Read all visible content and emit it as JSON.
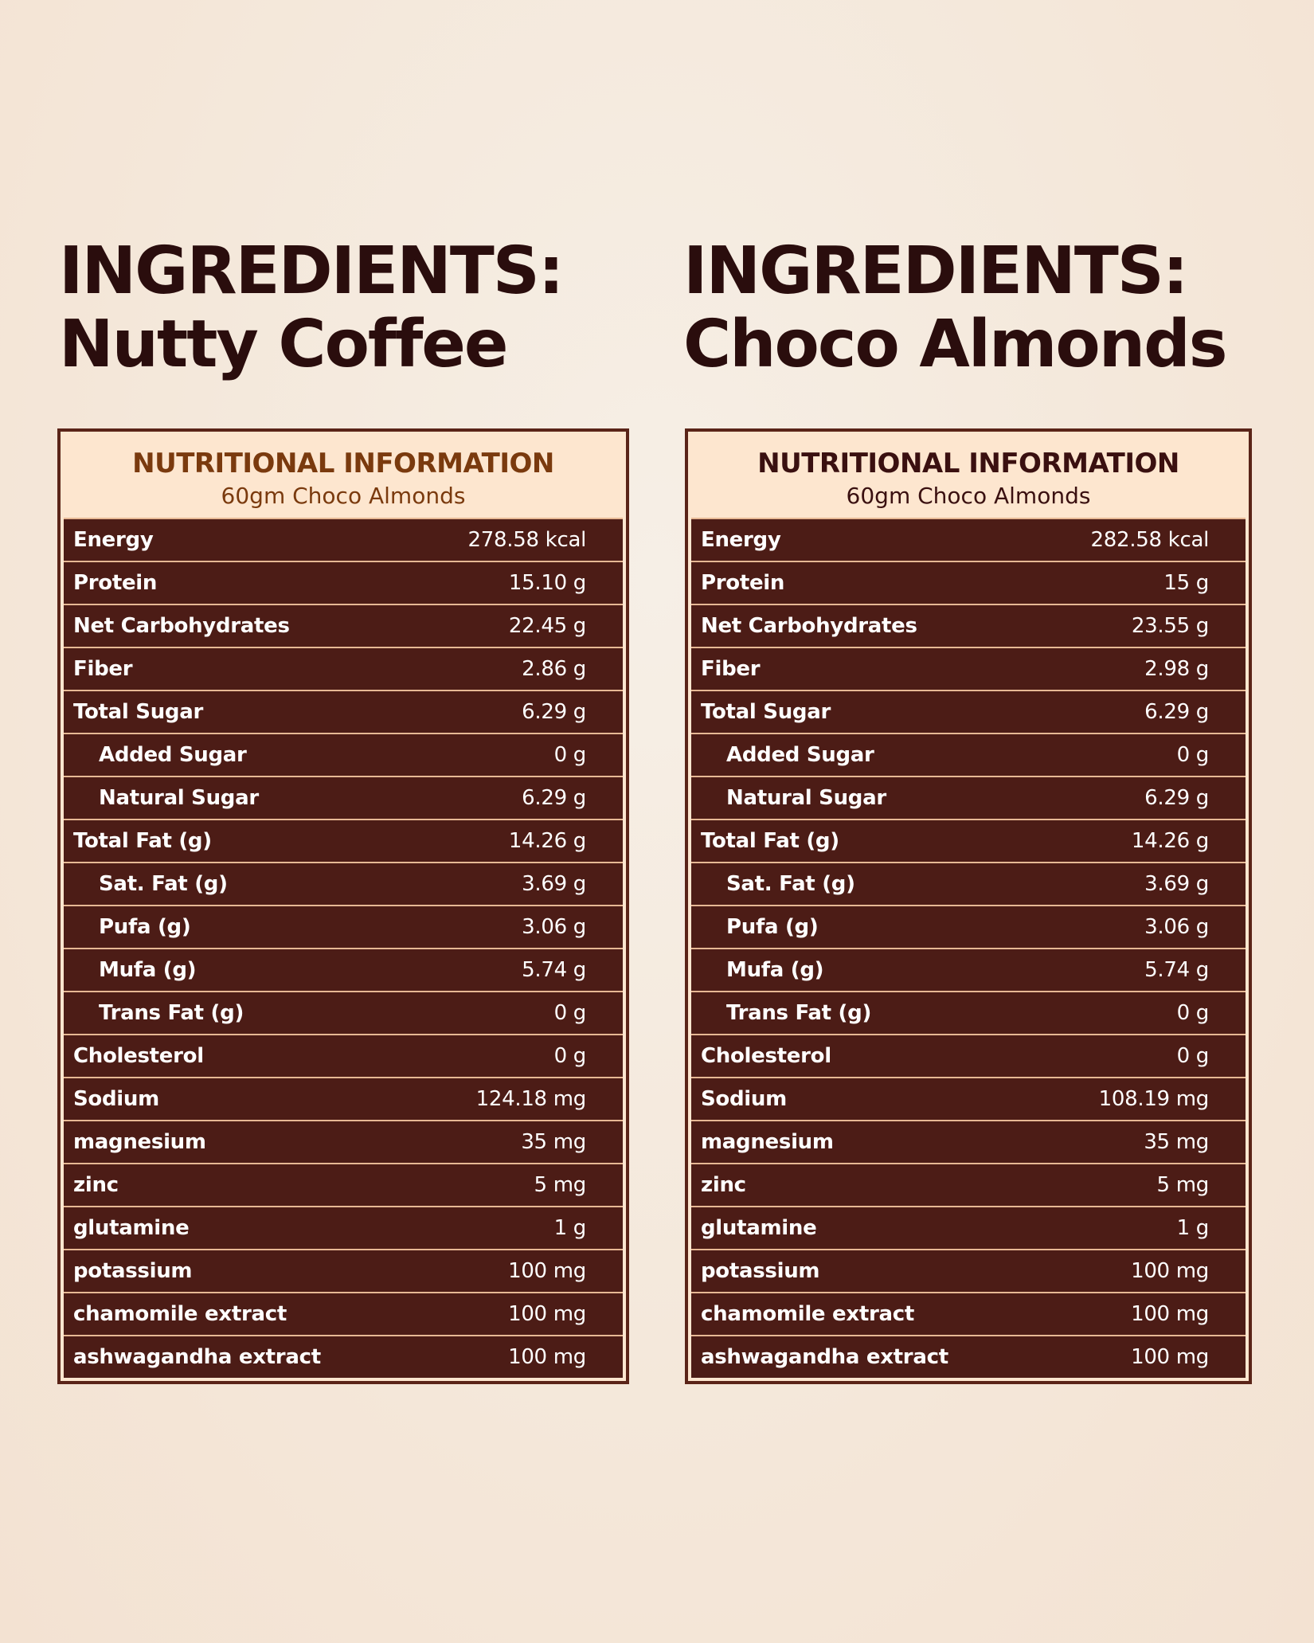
{
  "columns": [
    {
      "title_line1": "INGREDIENTS:",
      "title_line2": "Nutty Coffee",
      "header": "NUTRITIONAL INFORMATION",
      "subheader": "60gm Choco Almonds",
      "header_color": "#7a3a0e",
      "subheader_color": "#7a3a0e",
      "rows": [
        {
          "label": "Energy",
          "value": "278.58 kcal"
        },
        {
          "label": "Protein",
          "value": "15.10 g"
        },
        {
          "label": "Net Carbohydrates",
          "value": "22.45 g"
        },
        {
          "label": "Fiber",
          "value": "2.86 g"
        },
        {
          "label": "Total Sugar",
          "value": "6.29 g"
        },
        {
          "label": "Added Sugar",
          "value": "0 g",
          "sub": true
        },
        {
          "label": "Natural Sugar",
          "value": "6.29 g",
          "sub": true
        },
        {
          "label": "Total Fat (g)",
          "value": "14.26 g"
        },
        {
          "label": "Sat. Fat (g)",
          "value": "3.69 g",
          "sub": true
        },
        {
          "label": "Pufa (g)",
          "value": "3.06 g",
          "sub": true
        },
        {
          "label": "Mufa (g)",
          "value": "5.74 g",
          "sub": true
        },
        {
          "label": "Trans Fat (g)",
          "value": "0 g",
          "sub": true
        },
        {
          "label": "Cholesterol",
          "value": "0 g"
        },
        {
          "label": "Sodium",
          "value": "124.18 mg"
        },
        {
          "label": "magnesium",
          "value": "35 mg"
        },
        {
          "label": "zinc",
          "value": "5 mg"
        },
        {
          "label": "glutamine",
          "value": "1 g"
        },
        {
          "label": "potassium",
          "value": "100 mg"
        },
        {
          "label": "chamomile extract",
          "value": "100 mg"
        },
        {
          "label": "ashwagandha extract",
          "value": "100 mg"
        }
      ]
    },
    {
      "title_line1": "INGREDIENTS:",
      "title_line2": "Choco Almonds",
      "header": "NUTRITIONAL INFORMATION",
      "subheader": "60gm Choco Almonds",
      "header_color": "#3a1010",
      "subheader_color": "#3a1010",
      "rows": [
        {
          "label": "Energy",
          "value": "282.58 kcal"
        },
        {
          "label": "Protein",
          "value": "15 g"
        },
        {
          "label": "Net Carbohydrates",
          "value": "23.55 g"
        },
        {
          "label": "Fiber",
          "value": "2.98 g"
        },
        {
          "label": "Total Sugar",
          "value": "6.29 g"
        },
        {
          "label": "Added Sugar",
          "value": "0 g",
          "sub": true
        },
        {
          "label": "Natural Sugar",
          "value": "6.29 g",
          "sub": true
        },
        {
          "label": "Total Fat (g)",
          "value": "14.26 g"
        },
        {
          "label": "Sat. Fat (g)",
          "value": "3.69 g",
          "sub": true
        },
        {
          "label": "Pufa (g)",
          "value": "3.06 g",
          "sub": true
        },
        {
          "label": "Mufa (g)",
          "value": "5.74 g",
          "sub": true
        },
        {
          "label": "Trans Fat (g)",
          "value": "0 g",
          "sub": true
        },
        {
          "label": "Cholesterol",
          "value": "0 g"
        },
        {
          "label": "Sodium",
          "value": "108.19 mg"
        },
        {
          "label": "magnesium",
          "value": "35 mg"
        },
        {
          "label": "zinc",
          "value": "5 mg"
        },
        {
          "label": "glutamine",
          "value": "1 g"
        },
        {
          "label": "potassium",
          "value": "100 mg"
        },
        {
          "label": "chamomile extract",
          "value": "100 mg"
        },
        {
          "label": "ashwagandha extract",
          "value": "100 mg"
        }
      ]
    }
  ]
}
